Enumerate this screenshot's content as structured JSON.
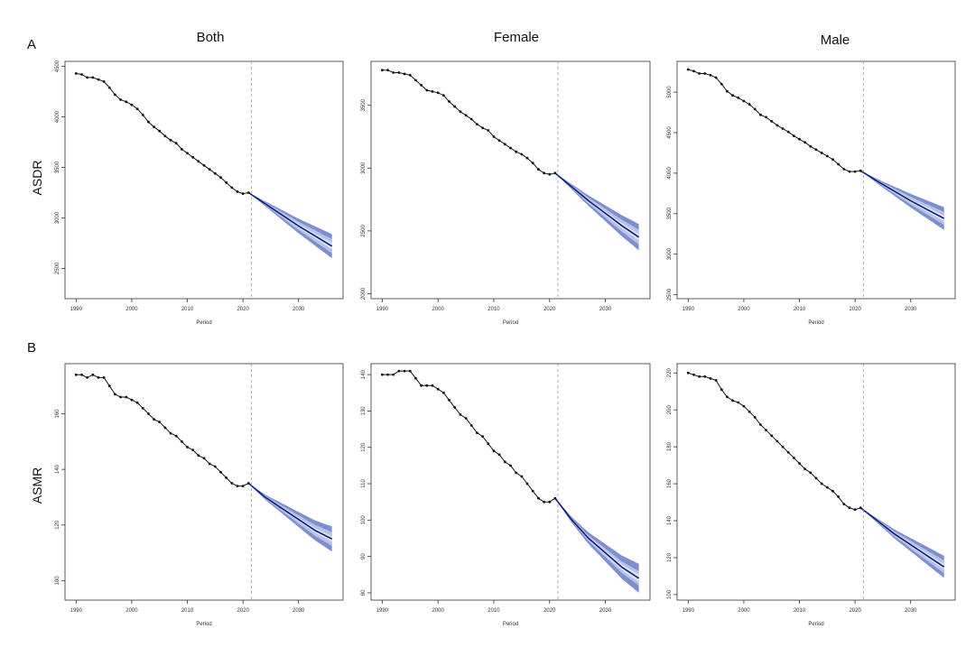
{
  "figure": {
    "panel_labels": [
      "A",
      "B"
    ],
    "column_titles": [
      "Both",
      "Female",
      "Male"
    ],
    "row_labels": [
      "ASDR",
      "ASMR"
    ],
    "xlabel": "Period",
    "colors": {
      "observed_line": "#111111",
      "projection_line": "#0a1f7a",
      "band_outer": "#dfe4f4",
      "band_mid": "#b8c2e6",
      "band_inner": "#7e8fd0",
      "frame": "#333333",
      "divider": "#999999"
    }
  },
  "chart_data": [
    {
      "type": "line",
      "row": "ASDR",
      "column": "Both",
      "xlabel": "Period",
      "ylabel": "ASDR",
      "xlim": [
        1988,
        2038
      ],
      "ylim": [
        2200,
        4550
      ],
      "xticks": [
        1990,
        2000,
        2010,
        2020,
        2030
      ],
      "yticks": [
        2500,
        3000,
        3500,
        4000,
        4500
      ],
      "divider_x": 2021.5,
      "observed": {
        "x": [
          1990,
          1991,
          1992,
          1993,
          1994,
          1995,
          1996,
          1997,
          1998,
          1999,
          2000,
          2001,
          2002,
          2003,
          2004,
          2005,
          2006,
          2007,
          2008,
          2009,
          2010,
          2011,
          2012,
          2013,
          2014,
          2015,
          2016,
          2017,
          2018,
          2019,
          2020,
          2021
        ],
        "y": [
          4430,
          4420,
          4390,
          4390,
          4370,
          4350,
          4290,
          4220,
          4170,
          4150,
          4120,
          4080,
          4020,
          3950,
          3900,
          3860,
          3810,
          3770,
          3740,
          3680,
          3640,
          3600,
          3560,
          3520,
          3480,
          3440,
          3400,
          3350,
          3300,
          3260,
          3240,
          3250
        ]
      },
      "projection": {
        "x": [
          2021,
          2024,
          2027,
          2030,
          2033,
          2036
        ],
        "y": [
          3250,
          3140,
          3030,
          2920,
          2820,
          2720
        ],
        "band_halfwidth_end": [
          30,
          70,
          120
        ]
      }
    },
    {
      "type": "line",
      "row": "ASDR",
      "column": "Female",
      "xlabel": "Period",
      "ylabel": "",
      "xlim": [
        1988,
        2038
      ],
      "ylim": [
        1960,
        3850
      ],
      "xticks": [
        1990,
        2000,
        2010,
        2020,
        2030
      ],
      "yticks": [
        2000,
        2500,
        3000,
        3500
      ],
      "divider_x": 2021.5,
      "observed": {
        "x": [
          1990,
          1991,
          1992,
          1993,
          1994,
          1995,
          1996,
          1997,
          1998,
          1999,
          2000,
          2001,
          2002,
          2003,
          2004,
          2005,
          2006,
          2007,
          2008,
          2009,
          2010,
          2011,
          2012,
          2013,
          2014,
          2015,
          2016,
          2017,
          2018,
          2019,
          2020,
          2021
        ],
        "y": [
          3780,
          3780,
          3760,
          3760,
          3750,
          3740,
          3700,
          3660,
          3620,
          3610,
          3600,
          3580,
          3530,
          3490,
          3450,
          3420,
          3390,
          3350,
          3320,
          3300,
          3250,
          3220,
          3190,
          3160,
          3130,
          3110,
          3080,
          3040,
          2990,
          2960,
          2950,
          2960
        ]
      },
      "projection": {
        "x": [
          2021,
          2024,
          2027,
          2030,
          2033,
          2036
        ],
        "y": [
          2960,
          2850,
          2740,
          2640,
          2540,
          2450
        ],
        "band_halfwidth_end": [
          25,
          60,
          105
        ]
      }
    },
    {
      "type": "line",
      "row": "ASDR",
      "column": "Male",
      "xlabel": "Period",
      "ylabel": "",
      "xlim": [
        1988,
        2038
      ],
      "ylim": [
        2450,
        5380
      ],
      "xticks": [
        1990,
        2000,
        2010,
        2020,
        2030
      ],
      "yticks": [
        2500,
        3000,
        3500,
        4000,
        4500,
        5000
      ],
      "divider_x": 2021.5,
      "observed": {
        "x": [
          1990,
          1991,
          1992,
          1993,
          1994,
          1995,
          1996,
          1997,
          1998,
          1999,
          2000,
          2001,
          2002,
          2003,
          2004,
          2005,
          2006,
          2007,
          2008,
          2009,
          2010,
          2011,
          2012,
          2013,
          2014,
          2015,
          2016,
          2017,
          2018,
          2019,
          2020,
          2021
        ],
        "y": [
          5280,
          5260,
          5230,
          5230,
          5210,
          5180,
          5100,
          5010,
          4960,
          4930,
          4890,
          4850,
          4790,
          4720,
          4690,
          4640,
          4590,
          4550,
          4510,
          4460,
          4420,
          4380,
          4330,
          4290,
          4250,
          4210,
          4170,
          4110,
          4050,
          4020,
          4020,
          4030
        ]
      },
      "projection": {
        "x": [
          2021,
          2024,
          2027,
          2030,
          2033,
          2036
        ],
        "y": [
          4030,
          3900,
          3780,
          3660,
          3550,
          3440
        ],
        "band_halfwidth_end": [
          35,
          80,
          140
        ]
      }
    },
    {
      "type": "line",
      "row": "ASMR",
      "column": "Both",
      "xlabel": "Period",
      "ylabel": "ASMR",
      "xlim": [
        1988,
        2038
      ],
      "ylim": [
        93,
        178
      ],
      "xticks": [
        1990,
        2000,
        2010,
        2020,
        2030
      ],
      "yticks": [
        100,
        120,
        140,
        160
      ],
      "divider_x": 2021.5,
      "observed": {
        "x": [
          1990,
          1991,
          1992,
          1993,
          1994,
          1995,
          1996,
          1997,
          1998,
          1999,
          2000,
          2001,
          2002,
          2003,
          2004,
          2005,
          2006,
          2007,
          2008,
          2009,
          2010,
          2011,
          2012,
          2013,
          2014,
          2015,
          2016,
          2017,
          2018,
          2019,
          2020,
          2021
        ],
        "y": [
          174,
          174,
          173,
          174,
          173,
          173,
          170,
          167,
          166,
          166,
          165,
          164,
          162,
          160,
          158,
          157,
          155,
          153,
          152,
          150,
          148,
          147,
          145,
          144,
          142,
          141,
          139,
          137,
          135,
          134,
          134,
          135
        ]
      },
      "projection": {
        "x": [
          2021,
          2024,
          2027,
          2030,
          2033,
          2036
        ],
        "y": [
          135,
          130,
          126,
          122,
          118,
          115
        ],
        "band_halfwidth_end": [
          1,
          2.5,
          4.5
        ]
      }
    },
    {
      "type": "line",
      "row": "ASMR",
      "column": "Female",
      "xlabel": "Period",
      "ylabel": "",
      "xlim": [
        1988,
        2038
      ],
      "ylim": [
        78,
        143
      ],
      "xticks": [
        1990,
        2000,
        2010,
        2020,
        2030
      ],
      "yticks": [
        80,
        90,
        100,
        110,
        120,
        130,
        140
      ],
      "divider_x": 2021.5,
      "observed": {
        "x": [
          1990,
          1991,
          1992,
          1993,
          1994,
          1995,
          1996,
          1997,
          1998,
          1999,
          2000,
          2001,
          2002,
          2003,
          2004,
          2005,
          2006,
          2007,
          2008,
          2009,
          2010,
          2011,
          2012,
          2013,
          2014,
          2015,
          2016,
          2017,
          2018,
          2019,
          2020,
          2021
        ],
        "y": [
          140,
          140,
          140,
          141,
          141,
          141,
          139,
          137,
          137,
          137,
          136,
          135,
          133,
          131,
          129,
          128,
          126,
          124,
          123,
          121,
          119,
          118,
          116,
          115,
          113,
          112,
          110,
          108,
          106,
          105,
          105,
          106
        ]
      },
      "projection": {
        "x": [
          2021,
          2024,
          2027,
          2030,
          2033,
          2036
        ],
        "y": [
          106,
          100,
          95,
          91,
          87,
          84
        ],
        "band_halfwidth_end": [
          1,
          2,
          4
        ]
      }
    },
    {
      "type": "line",
      "row": "ASMR",
      "column": "Male",
      "xlabel": "Period",
      "ylabel": "",
      "xlim": [
        1988,
        2038
      ],
      "ylim": [
        97,
        225
      ],
      "xticks": [
        1990,
        2000,
        2010,
        2020,
        2030
      ],
      "yticks": [
        100,
        120,
        140,
        160,
        180,
        200,
        220
      ],
      "divider_x": 2021.5,
      "observed": {
        "x": [
          1990,
          1991,
          1992,
          1993,
          1994,
          1995,
          1996,
          1997,
          1998,
          1999,
          2000,
          2001,
          2002,
          2003,
          2004,
          2005,
          2006,
          2007,
          2008,
          2009,
          2010,
          2011,
          2012,
          2013,
          2014,
          2015,
          2016,
          2017,
          2018,
          2019,
          2020,
          2021
        ],
        "y": [
          220,
          219,
          218,
          218,
          217,
          216,
          211,
          207,
          205,
          204,
          202,
          199,
          196,
          192,
          189,
          186,
          183,
          180,
          177,
          174,
          171,
          168,
          166,
          163,
          160,
          158,
          156,
          153,
          149,
          147,
          146,
          147
        ]
      },
      "projection": {
        "x": [
          2021,
          2024,
          2027,
          2030,
          2033,
          2036
        ],
        "y": [
          147,
          140,
          133,
          127,
          121,
          115
        ],
        "band_halfwidth_end": [
          1.5,
          3.5,
          6
        ]
      }
    }
  ]
}
